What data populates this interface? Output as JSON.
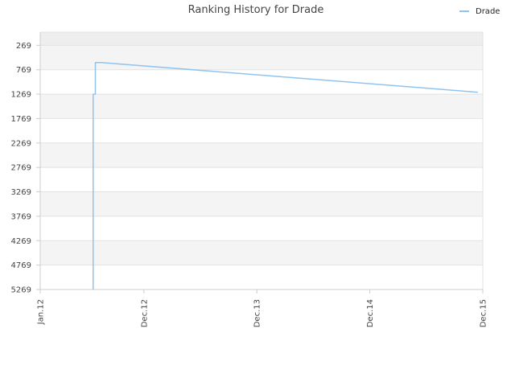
{
  "chart_data": {
    "type": "line",
    "title": "Ranking History for Drade",
    "xlabel": "",
    "ylabel": "",
    "x_ticks": [
      "Jan.12",
      "Dec.12",
      "Dec.13",
      "Dec.14",
      "Dec.15"
    ],
    "y_ticks": [
      269,
      769,
      1269,
      1769,
      2269,
      2769,
      3269,
      3769,
      4269,
      4769,
      5269
    ],
    "y_reversed": true,
    "ylim": [
      5269,
      0
    ],
    "xlim": [
      "2012-01",
      "2015-12"
    ],
    "grid": true,
    "legend_position": "top-right",
    "series": [
      {
        "name": "Drade",
        "color": "#90c4f0",
        "points": [
          {
            "x": "2012-06-20",
            "y": 5269
          },
          {
            "x": "2012-06-20",
            "y": 1269
          },
          {
            "x": "2012-06-27",
            "y": 1269
          },
          {
            "x": "2012-06-27",
            "y": 620
          },
          {
            "x": "2012-07-15",
            "y": 620
          },
          {
            "x": "2015-11-15",
            "y": 1230
          }
        ]
      }
    ]
  }
}
